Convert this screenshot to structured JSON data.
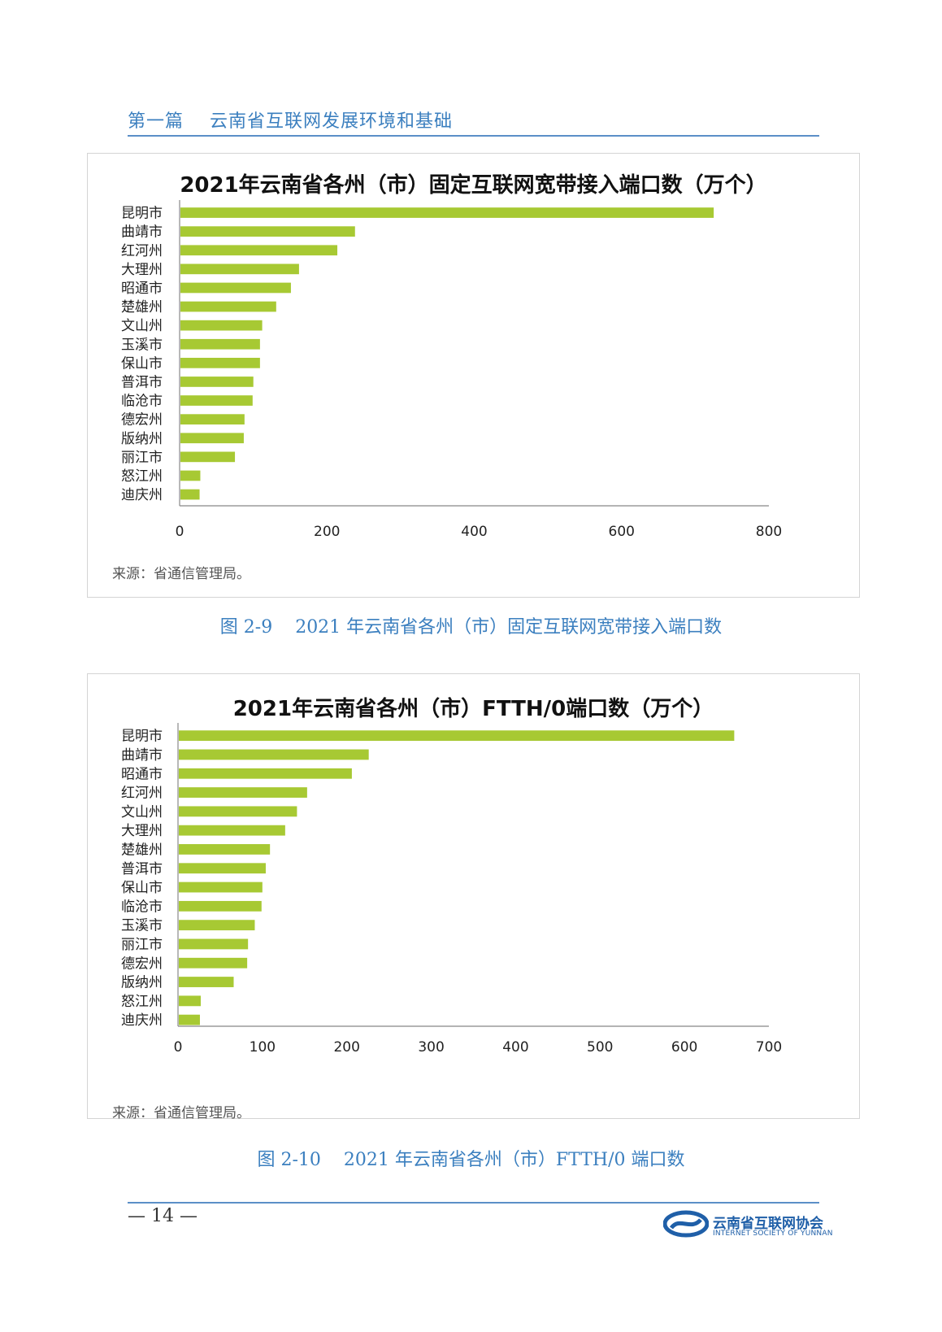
{
  "header": {
    "title": "第一篇    云南省互联网发展环境和基础"
  },
  "charts": [
    {
      "title": "2021年云南省各州（市）固定互联网宽带接入端口数（万个）",
      "source": "来源：省通信管理局。",
      "caption": "图 2-9    2021 年云南省各州（市）固定互联网宽带接入端口数",
      "bar_color": "#a7c933"
    },
    {
      "title": "2021年云南省各州（市）FTTH/0端口数（万个）",
      "source": "来源：省通信管理局。",
      "caption": "图 2-10    2021 年云南省各州（市）FTTH/0 端口数",
      "bar_color": "#a7c933"
    }
  ],
  "chart_data": [
    {
      "type": "bar",
      "orientation": "horizontal",
      "title": "2021年云南省各州（市）固定互联网宽带接入端口数（万个）",
      "categories": [
        "昆明市",
        "曲靖市",
        "红河州",
        "大理州",
        "昭通市",
        "楚雄州",
        "文山州",
        "玉溪市",
        "保山市",
        "普洱市",
        "临沧市",
        "德宏州",
        "版纳州",
        "丽江市",
        "怒江州",
        "迪庆州"
      ],
      "values": [
        724,
        237,
        213,
        161,
        150,
        130,
        111,
        108,
        108,
        99,
        98,
        87,
        86,
        74,
        27,
        26
      ],
      "xlim": [
        0,
        800
      ],
      "xticks": [
        0,
        200,
        400,
        600,
        800
      ],
      "grid": false,
      "legend": "none"
    },
    {
      "type": "bar",
      "orientation": "horizontal",
      "title": "2021年云南省各州（市）FTTH/0端口数（万个）",
      "categories": [
        "昆明市",
        "曲靖市",
        "昭通市",
        "红河州",
        "文山州",
        "大理州",
        "楚雄州",
        "普洱市",
        "保山市",
        "临沧市",
        "玉溪市",
        "丽江市",
        "德宏州",
        "版纳州",
        "怒江州",
        "迪庆州"
      ],
      "values": [
        658,
        225,
        205,
        152,
        140,
        126,
        108,
        103,
        99,
        98,
        90,
        82,
        81,
        65,
        26,
        25
      ],
      "xlim": [
        0,
        700
      ],
      "xticks": [
        0,
        100,
        200,
        300,
        400,
        500,
        600,
        700
      ],
      "grid": false,
      "legend": "none"
    }
  ],
  "footer": {
    "page_number": "— 14 —",
    "org_name": "云南省互联网协会",
    "org_name_en": "INTERNET SOCIETY OF YUNNAN"
  }
}
